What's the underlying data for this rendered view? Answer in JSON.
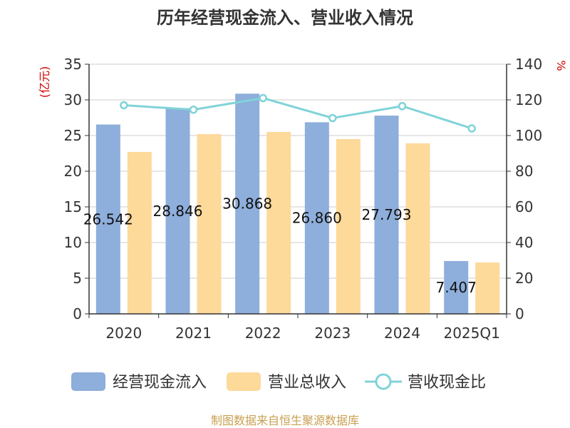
{
  "chart_data": {
    "type": "bar",
    "title": "历年经营现金流入、营业收入情况",
    "categories": [
      "2020",
      "2021",
      "2022",
      "2023",
      "2024",
      "2025Q1"
    ],
    "series": [
      {
        "name": "经营现金流入",
        "type": "bar",
        "axis": "left",
        "color": "#8eaedb",
        "values": [
          26.542,
          28.846,
          30.868,
          26.86,
          27.793,
          7.407
        ],
        "labels": [
          "26.542",
          "28.846",
          "30.868",
          "26.860",
          "27.793",
          "7.407"
        ]
      },
      {
        "name": "营业总收入",
        "type": "bar",
        "axis": "left",
        "color": "#fdd99a",
        "values": [
          22.7,
          25.2,
          25.5,
          24.5,
          23.9,
          7.2
        ]
      },
      {
        "name": "营收现金比",
        "type": "line",
        "axis": "right",
        "color": "#80d3d8",
        "values": [
          117.0,
          114.5,
          121.0,
          109.8,
          116.5,
          104.0
        ]
      }
    ],
    "y_left": {
      "unit": "(亿元)",
      "min": 0,
      "max": 35,
      "ticks": [
        0,
        5,
        10,
        15,
        20,
        25,
        30,
        35
      ]
    },
    "y_right": {
      "unit": "%",
      "min": 0,
      "max": 140,
      "ticks": [
        0,
        20,
        40,
        60,
        80,
        100,
        120,
        140
      ]
    },
    "grid": true,
    "legend_position": "bottom",
    "source": "制图数据来自恒生聚源数据库",
    "colors": {
      "unit": "#d00000",
      "source": "#c8a050",
      "axis": "#333333",
      "grid": "#cccccc"
    }
  }
}
